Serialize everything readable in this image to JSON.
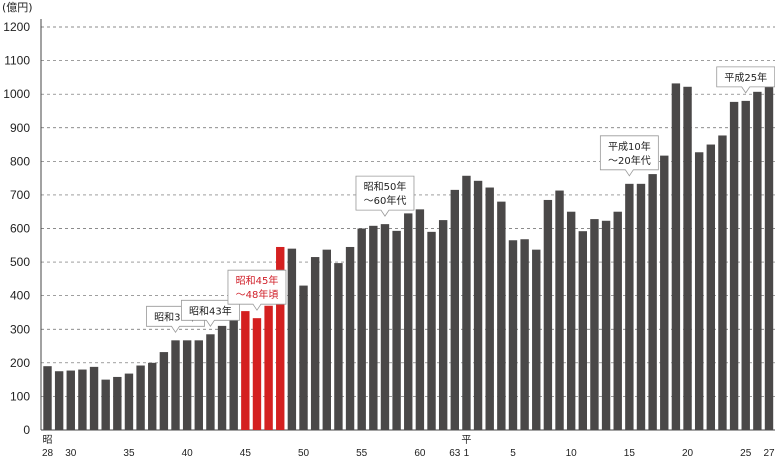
{
  "chart_data": {
    "type": "bar",
    "ylabel": "(億円)",
    "ylim": [
      0,
      1200
    ],
    "yticks": [
      0,
      100,
      200,
      300,
      400,
      500,
      600,
      700,
      800,
      900,
      1000,
      1100,
      1200
    ],
    "grid": true,
    "colors": {
      "default": "#4a4848",
      "highlight": "#d42020",
      "grid": "#666666"
    },
    "x_tick_labels": [
      {
        "index": 0,
        "lines": [
          "昭",
          "28"
        ]
      },
      {
        "index": 2,
        "lines": [
          "30"
        ]
      },
      {
        "index": 7,
        "lines": [
          "35"
        ]
      },
      {
        "index": 12,
        "lines": [
          "40"
        ]
      },
      {
        "index": 17,
        "lines": [
          "45"
        ]
      },
      {
        "index": 22,
        "lines": [
          "50"
        ]
      },
      {
        "index": 27,
        "lines": [
          "55"
        ]
      },
      {
        "index": 32,
        "lines": [
          "60"
        ]
      },
      {
        "index": 35,
        "lines": [
          "63"
        ]
      },
      {
        "index": 36,
        "lines": [
          "平",
          "1"
        ]
      },
      {
        "index": 40,
        "lines": [
          "5"
        ]
      },
      {
        "index": 45,
        "lines": [
          "10"
        ]
      },
      {
        "index": 50,
        "lines": [
          "15"
        ]
      },
      {
        "index": 55,
        "lines": [
          "20"
        ]
      },
      {
        "index": 60,
        "lines": [
          "25"
        ]
      },
      {
        "index": 62,
        "lines": [
          "27"
        ]
      }
    ],
    "values": [
      190,
      175,
      177,
      180,
      188,
      150,
      158,
      168,
      192,
      200,
      232,
      267,
      267,
      267,
      285,
      310,
      347,
      354,
      333,
      370,
      545,
      540,
      430,
      515,
      537,
      497,
      545,
      600,
      608,
      613,
      593,
      645,
      657,
      590,
      625,
      715,
      757,
      742,
      722,
      680,
      565,
      568,
      537,
      685,
      713,
      650,
      592,
      628,
      623,
      650,
      733,
      733,
      762,
      817,
      1032,
      1022,
      827,
      850,
      877,
      977,
      980,
      1007,
      1030
    ],
    "highlight_indices": [
      17,
      18,
      19,
      20
    ],
    "annotations": [
      {
        "bar_index": 11,
        "lines": [
          "昭和39年"
        ],
        "color": "default"
      },
      {
        "bar_index": 14,
        "lines": [
          "昭和43年"
        ],
        "color": "default"
      },
      {
        "bar_index": 18,
        "lines": [
          "昭和45年",
          "〜48年頃"
        ],
        "color": "highlight"
      },
      {
        "bar_index": 29,
        "lines": [
          "昭和50年",
          "〜60年代"
        ],
        "color": "default"
      },
      {
        "bar_index": 50,
        "lines": [
          "平成10年",
          "〜20年代"
        ],
        "color": "default"
      },
      {
        "bar_index": 60,
        "lines": [
          "平成25年"
        ],
        "color": "default"
      }
    ]
  }
}
